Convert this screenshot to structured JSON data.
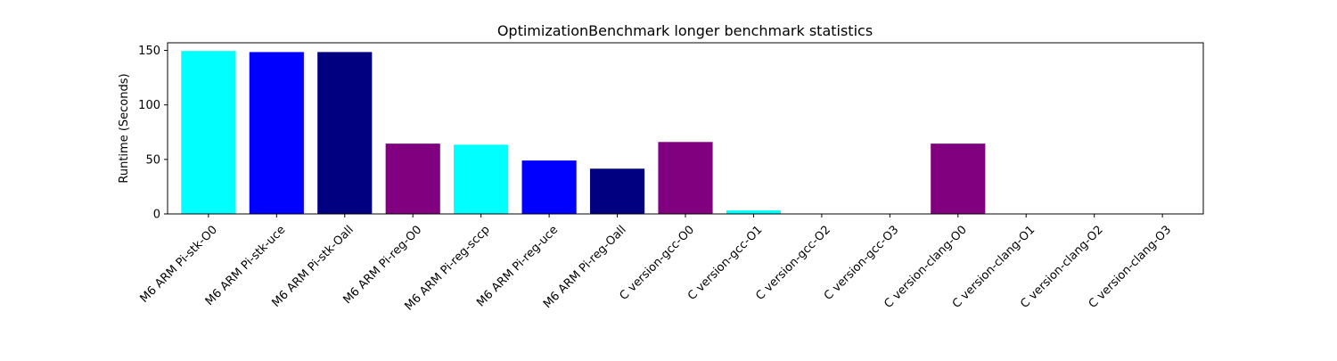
{
  "chart_data": {
    "type": "bar",
    "title": "OptimizationBenchmark longer benchmark statistics",
    "xlabel": "",
    "ylabel": "Runtime (Seconds)",
    "ylim": [
      0,
      157
    ],
    "yticks": [
      0,
      50,
      100,
      150
    ],
    "grid": false,
    "categories": [
      "M6 ARM Pi-stk-O0",
      "M6 ARM Pi-stk-uce",
      "M6 ARM Pi-stk-Oall",
      "M6 ARM Pi-reg-O0",
      "M6 ARM Pi-reg-sccp",
      "M6 ARM Pi-reg-uce",
      "M6 ARM Pi-reg-Oall",
      "C version-gcc-O0",
      "C version-gcc-O1",
      "C version-gcc-O2",
      "C version-gcc-O3",
      "C version-clang-O0",
      "C version-clang-O1",
      "C version-clang-O2",
      "C version-clang-O3"
    ],
    "values": [
      149.5,
      148.5,
      148.5,
      64.5,
      63.5,
      49.0,
      41.5,
      66.0,
      3.2,
      0.3,
      0.3,
      64.5,
      0.3,
      0.3,
      0.3
    ],
    "colors": [
      "#00ffff",
      "#0000ff",
      "#000080",
      "#800080",
      "#00ffff",
      "#0000ff",
      "#000080",
      "#800080",
      "#00ffff",
      "#0000ff",
      "#000080",
      "#800080",
      "#00ffff",
      "#0000ff",
      "#000080"
    ]
  }
}
